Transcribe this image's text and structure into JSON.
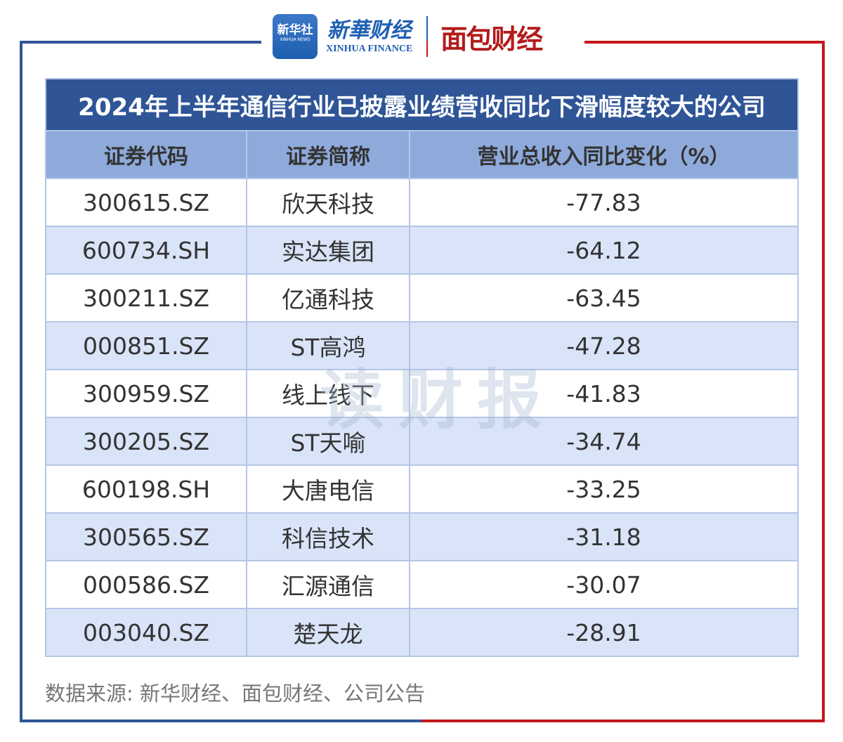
{
  "logos": {
    "xinhua_news": "新华社",
    "xinhua_news_en": "XINHUA NEWS",
    "xinhua_finance": "新華财经",
    "xinhua_finance_en": "XINHUA FINANCE",
    "mianbao": "面包财经"
  },
  "title": "2024年上半年通信行业已披露业绩营收同比下滑幅度较大的公司",
  "columns": [
    "证券代码",
    "证券简称",
    "营业总收入同比变化（%）"
  ],
  "rows": [
    [
      "300615.SZ",
      "欣天科技",
      "-77.83"
    ],
    [
      "600734.SH",
      "实达集团",
      "-64.12"
    ],
    [
      "300211.SZ",
      "亿通科技",
      "-63.45"
    ],
    [
      "000851.SZ",
      "ST高鸿",
      "-47.28"
    ],
    [
      "300959.SZ",
      "线上线下",
      "-41.83"
    ],
    [
      "300205.SZ",
      "ST天喻",
      "-34.74"
    ],
    [
      "600198.SH",
      "大唐电信",
      "-33.25"
    ],
    [
      "300565.SZ",
      "科信技术",
      "-31.18"
    ],
    [
      "000586.SZ",
      "汇源通信",
      "-30.07"
    ],
    [
      "003040.SZ",
      "楚天龙",
      "-28.91"
    ]
  ],
  "watermark": "读财报",
  "source": "数据来源: 新华财经、面包财经、公司公告",
  "colors": {
    "frame_blue": "#2f5597",
    "frame_red": "#c4161c",
    "title_bg": "#2f5597",
    "header_bg": "#8eaadb",
    "stripe": "#d9e4f8"
  }
}
